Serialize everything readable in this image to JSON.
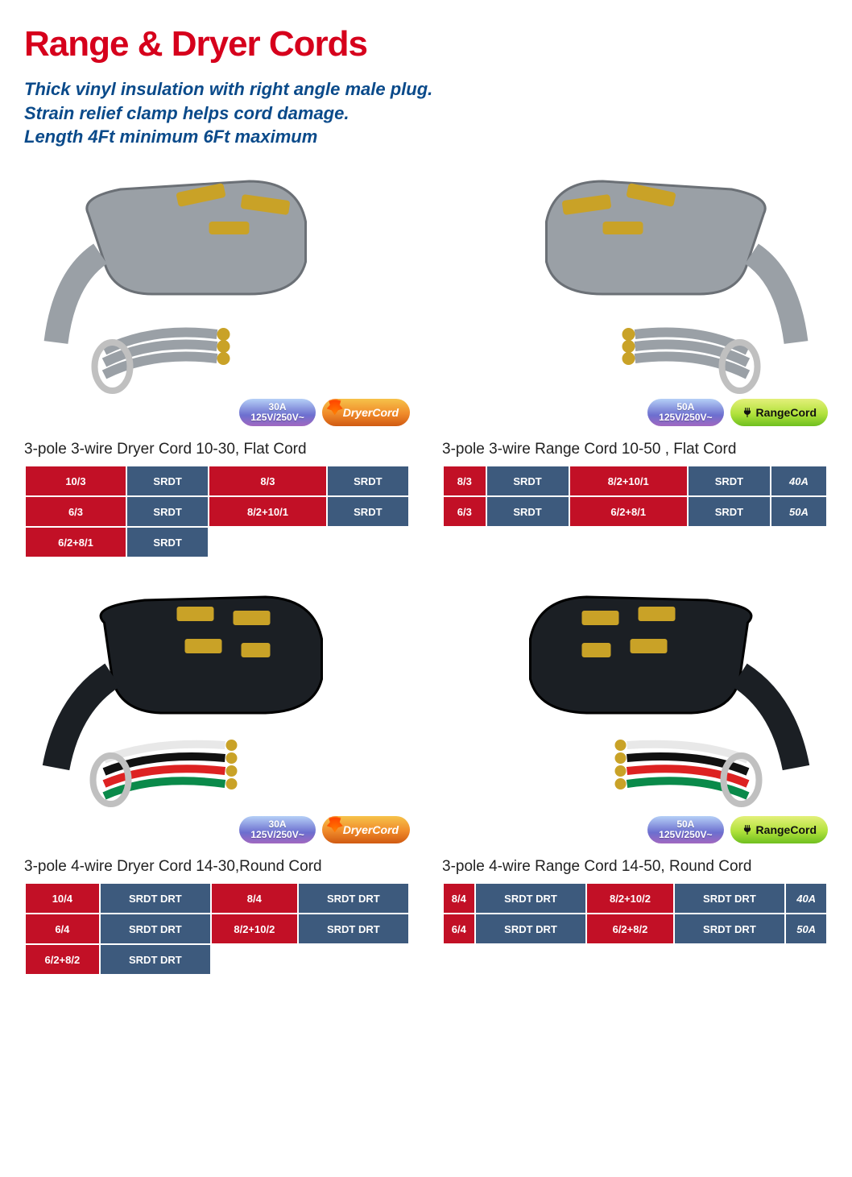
{
  "title": "Range & Dryer Cords",
  "subtitle_lines": [
    "Thick vinyl insulation with right  angle male plug.",
    "Strain relief clamp  helps cord  damage.",
    "Length 4Ft minimum 6Ft maximum"
  ],
  "colors": {
    "title": "#d6001c",
    "subtitle": "#0a4a8a",
    "cell_red": "#c21026",
    "cell_blue": "#3d5a7d",
    "background": "#ffffff"
  },
  "badges": {
    "dryer": {
      "amp": "30A",
      "volt": "125V/250V~",
      "label": "DryerCord"
    },
    "range": {
      "amp": "50A",
      "volt": "125V/250V~",
      "label": "RangeCord"
    }
  },
  "products": [
    {
      "id": "p1",
      "image_desc": "3-prong gray flat dryer plug with ring terminals",
      "badge_type": "dryer",
      "title": "3-pole 3-wire Dryer Cord 10-30, Flat  Cord",
      "columns": 4,
      "rows": [
        [
          {
            "t": "10/3",
            "c": "red"
          },
          {
            "t": "SRDT",
            "c": "blue"
          },
          {
            "t": "8/3",
            "c": "red"
          },
          {
            "t": "SRDT",
            "c": "blue"
          }
        ],
        [
          {
            "t": "6/3",
            "c": "red"
          },
          {
            "t": "SRDT",
            "c": "blue"
          },
          {
            "t": "8/2+10/1",
            "c": "red"
          },
          {
            "t": "SRDT",
            "c": "blue"
          }
        ],
        [
          {
            "t": "6/2+8/1",
            "c": "red"
          },
          {
            "t": "SRDT",
            "c": "blue"
          },
          {
            "t": "",
            "c": "empty"
          },
          {
            "t": "",
            "c": "empty"
          }
        ]
      ]
    },
    {
      "id": "p2",
      "image_desc": "3-prong gray flat range plug with ring terminals",
      "badge_type": "range",
      "title": "3-pole 3-wire Range Cord 10-50 , Flat  Cord",
      "columns": 5,
      "rows": [
        [
          {
            "t": "8/3",
            "c": "red"
          },
          {
            "t": "SRDT",
            "c": "blue"
          },
          {
            "t": "8/2+10/1",
            "c": "red"
          },
          {
            "t": "SRDT",
            "c": "blue"
          },
          {
            "t": "40A",
            "c": "ext"
          }
        ],
        [
          {
            "t": "6/3",
            "c": "red"
          },
          {
            "t": "SRDT",
            "c": "blue"
          },
          {
            "t": "6/2+8/1",
            "c": "red"
          },
          {
            "t": "SRDT",
            "c": "blue"
          },
          {
            "t": "50A",
            "c": "ext"
          }
        ]
      ]
    },
    {
      "id": "p3",
      "image_desc": "4-prong black round dryer plug with colored ring terminals",
      "badge_type": "dryer",
      "title": "3-pole 4-wire Dryer Cord 14-30,Round Cord",
      "columns": 4,
      "rows": [
        [
          {
            "t": "10/4",
            "c": "red"
          },
          {
            "t": "SRDT  DRT",
            "c": "blue"
          },
          {
            "t": "8/4",
            "c": "red"
          },
          {
            "t": "SRDT  DRT",
            "c": "blue"
          }
        ],
        [
          {
            "t": "6/4",
            "c": "red"
          },
          {
            "t": "SRDT  DRT",
            "c": "blue"
          },
          {
            "t": "8/2+10/2",
            "c": "red"
          },
          {
            "t": "SRDT  DRT",
            "c": "blue"
          }
        ],
        [
          {
            "t": "6/2+8/2",
            "c": "red"
          },
          {
            "t": "SRDT  DRT",
            "c": "blue"
          },
          {
            "t": "",
            "c": "empty"
          },
          {
            "t": "",
            "c": "empty"
          }
        ]
      ]
    },
    {
      "id": "p4",
      "image_desc": "4-prong black round range plug with colored ring terminals",
      "badge_type": "range",
      "title": "3-pole 4-wire Range Cord 14-50, Round Cord",
      "columns": 5,
      "rows": [
        [
          {
            "t": "8/4",
            "c": "red"
          },
          {
            "t": "SRDT  DRT",
            "c": "blue"
          },
          {
            "t": "8/2+10/2",
            "c": "red"
          },
          {
            "t": "SRDT  DRT",
            "c": "blue"
          },
          {
            "t": "40A",
            "c": "ext"
          }
        ],
        [
          {
            "t": "6/4",
            "c": "red"
          },
          {
            "t": "SRDT  DRT",
            "c": "blue"
          },
          {
            "t": "6/2+8/2",
            "c": "red"
          },
          {
            "t": "SRDT  DRT",
            "c": "blue"
          },
          {
            "t": "50A",
            "c": "ext"
          }
        ]
      ]
    }
  ]
}
